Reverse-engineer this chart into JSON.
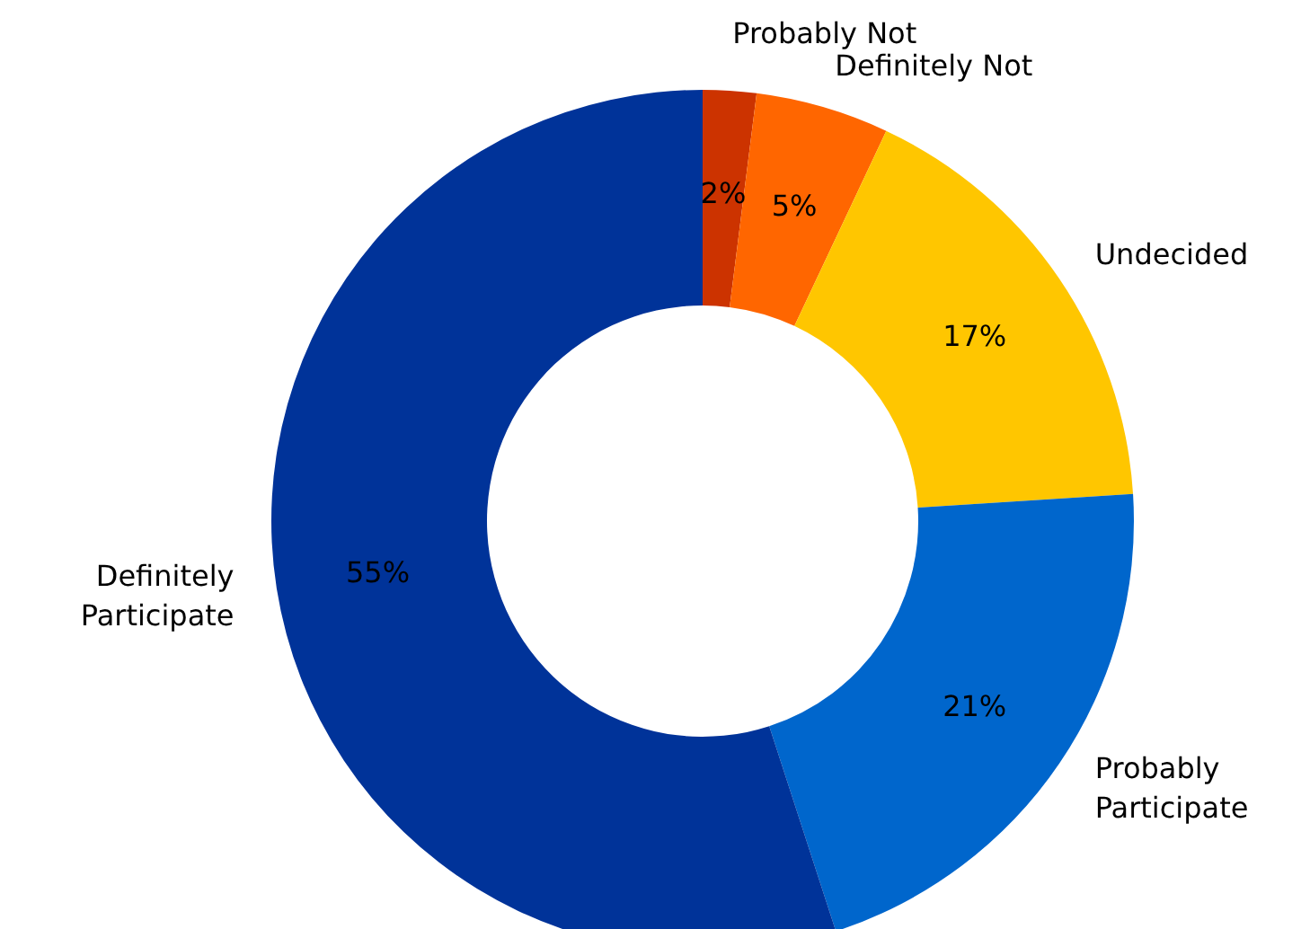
{
  "chart_data": {
    "type": "donut",
    "categories": [
      "Probably Not",
      "Definitely Not",
      "Undecided",
      "Probably Participate",
      "Definitely Participate"
    ],
    "values": [
      2,
      5,
      17,
      21,
      55
    ],
    "colors": [
      "#cc3300",
      "#ff6600",
      "#ffc600",
      "#0066cc",
      "#003399"
    ],
    "value_labels": [
      "2%",
      "5%",
      "17%",
      "21%",
      "55%"
    ]
  }
}
